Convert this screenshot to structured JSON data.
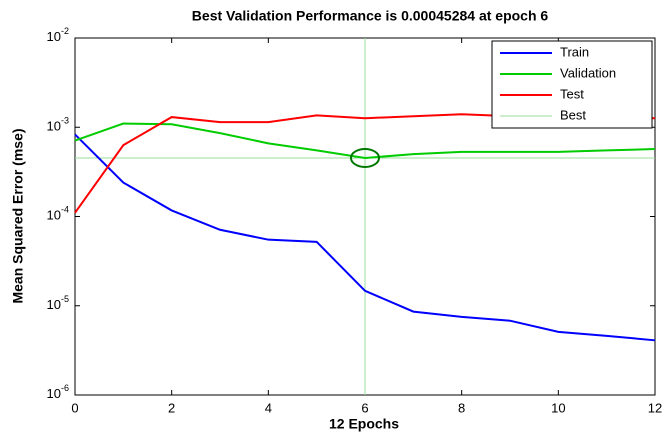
{
  "chart_data": {
    "type": "line",
    "title": "Best Validation Performance is 0.00045284 at epoch 6",
    "x_label": "12 Epochs",
    "y_label": "Mean Squared Error  (mse)",
    "x": [
      0,
      1,
      2,
      3,
      4,
      5,
      6,
      7,
      8,
      9,
      10,
      11,
      12
    ],
    "series": [
      {
        "name": "Train",
        "color": "#0000ff",
        "values": [
          0.00083,
          0.00024,
          0.000117,
          7.1e-05,
          5.5e-05,
          5.2e-05,
          1.47e-05,
          8.6e-06,
          7.5e-06,
          6.8e-06,
          5.1e-06,
          4.6e-06,
          4.1e-06
        ]
      },
      {
        "name": "Validation",
        "color": "#00cc00",
        "values": [
          0.00071,
          0.0011,
          0.00108,
          0.00086,
          0.00066,
          0.00055,
          0.00045284,
          0.0005,
          0.00053,
          0.00053,
          0.00053,
          0.00055,
          0.00057
        ]
      },
      {
        "name": "Test",
        "color": "#ff0000",
        "values": [
          0.00011,
          0.00063,
          0.0013,
          0.00114,
          0.00114,
          0.00136,
          0.00126,
          0.00133,
          0.0014,
          0.00133,
          0.0013,
          0.0013,
          0.00126
        ]
      }
    ],
    "best": {
      "name": "Best",
      "color": "#99dd99",
      "epoch": 6,
      "value": 0.00045284
    },
    "xlim": [
      0,
      12
    ],
    "xticks": [
      0,
      2,
      4,
      6,
      8,
      10,
      12
    ],
    "ylim": [
      1e-06,
      0.01
    ],
    "log_y": true,
    "yticks": [
      {
        "value": 1e-06,
        "label": "10^-6"
      },
      {
        "value": 1e-05,
        "label": "10^-5"
      },
      {
        "value": 0.0001,
        "label": "10^-4"
      },
      {
        "value": 0.001,
        "label": "10^-3"
      },
      {
        "value": 0.01,
        "label": "10^-2"
      }
    ],
    "legend": "upper right"
  }
}
